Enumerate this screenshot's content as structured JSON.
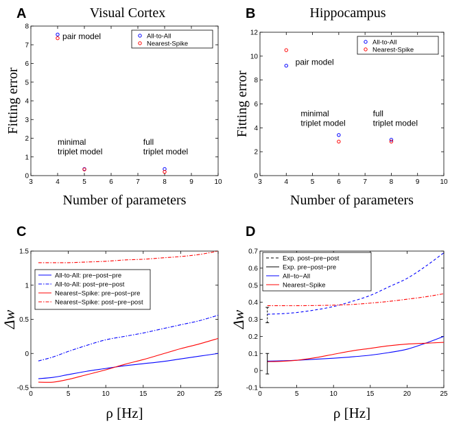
{
  "panels": {
    "A": {
      "letter": "A",
      "title": "Visual Cortex"
    },
    "B": {
      "letter": "B",
      "title": "Hippocampus"
    },
    "C": {
      "letter": "C"
    },
    "D": {
      "letter": "D"
    }
  },
  "chart_data": [
    {
      "id": "A",
      "type": "scatter",
      "title": "Visual Cortex",
      "xlabel": "Number of parameters",
      "ylabel": "Fitting error",
      "xlim": [
        3,
        10
      ],
      "ylim": [
        0,
        8
      ],
      "xticks": [
        3,
        4,
        5,
        6,
        7,
        8,
        9,
        10
      ],
      "yticks": [
        0,
        1,
        2,
        3,
        4,
        5,
        6,
        7,
        8
      ],
      "legend": {
        "position": "top-right"
      },
      "series": [
        {
          "name": "All-to-All",
          "color": "#0000ff",
          "x": [
            4,
            5,
            8
          ],
          "y": [
            7.55,
            0.35,
            0.35
          ]
        },
        {
          "name": "Nearest-Spike",
          "color": "#ff0000",
          "x": [
            4,
            5,
            8
          ],
          "y": [
            7.35,
            0.33,
            0.2
          ]
        }
      ],
      "annotations": [
        {
          "lines": [
            "pair model"
          ],
          "x": 4.18,
          "y": 7.45
        },
        {
          "lines": [
            "minimal",
            "triplet model"
          ],
          "x": 4.0,
          "y": 1.8
        },
        {
          "lines": [
            "full",
            "triplet model"
          ],
          "x": 7.2,
          "y": 1.8
        }
      ]
    },
    {
      "id": "B",
      "type": "scatter",
      "title": "Hippocampus",
      "xlabel": "Number of parameters",
      "ylabel": "Fitting error",
      "xlim": [
        3,
        10
      ],
      "ylim": [
        0,
        12
      ],
      "xticks": [
        3,
        4,
        5,
        6,
        7,
        8,
        9,
        10
      ],
      "yticks": [
        0,
        2,
        4,
        6,
        8,
        10,
        12
      ],
      "legend": {
        "position": "top-right"
      },
      "series": [
        {
          "name": "All-to-All",
          "color": "#0000ff",
          "x": [
            4,
            6,
            8
          ],
          "y": [
            9.2,
            3.4,
            3.0
          ]
        },
        {
          "name": "Nearest-Spike",
          "color": "#ff0000",
          "x": [
            4,
            6,
            8
          ],
          "y": [
            10.5,
            2.85,
            2.85
          ]
        }
      ],
      "annotations": [
        {
          "lines": [
            "pair model"
          ],
          "x": 4.35,
          "y": 9.5
        },
        {
          "lines": [
            "minimal",
            "triplet model"
          ],
          "x": 4.55,
          "y": 5.2
        },
        {
          "lines": [
            "full",
            "triplet model"
          ],
          "x": 7.3,
          "y": 5.2
        }
      ]
    },
    {
      "id": "C",
      "type": "line",
      "xlabel": "ρ [Hz]",
      "ylabel": "Δw",
      "xlim": [
        0,
        25
      ],
      "ylim": [
        -0.5,
        1.5
      ],
      "xticks": [
        0,
        5,
        10,
        15,
        20,
        25
      ],
      "yticks": [
        -0.5,
        0,
        0.5,
        1,
        1.5
      ],
      "legend": {
        "position": "center-left"
      },
      "x": [
        1,
        3,
        5,
        7.5,
        10,
        12.5,
        15,
        17.5,
        20,
        22.5,
        25
      ],
      "series": [
        {
          "name": "All-to-All: pre−post−pre",
          "color": "#0000ff",
          "dash": "solid",
          "values": [
            -0.37,
            -0.35,
            -0.31,
            -0.26,
            -0.22,
            -0.18,
            -0.15,
            -0.12,
            -0.08,
            -0.04,
            0.0
          ]
        },
        {
          "name": "All-to-All: post−pre−post",
          "color": "#0000ff",
          "dash": "dashdot",
          "values": [
            -0.11,
            -0.05,
            0.03,
            0.12,
            0.2,
            0.25,
            0.3,
            0.36,
            0.42,
            0.48,
            0.56
          ]
        },
        {
          "name": "Nearest−Spike: pre−post−pre",
          "color": "#ff0000",
          "dash": "solid",
          "values": [
            -0.42,
            -0.42,
            -0.38,
            -0.31,
            -0.24,
            -0.16,
            -0.09,
            -0.01,
            0.07,
            0.14,
            0.22
          ]
        },
        {
          "name": "Nearest−Spike: post−pre−post",
          "color": "#ff0000",
          "dash": "dashdot",
          "values": [
            1.33,
            1.33,
            1.33,
            1.34,
            1.35,
            1.37,
            1.38,
            1.4,
            1.42,
            1.45,
            1.5
          ]
        }
      ]
    },
    {
      "id": "D",
      "type": "line",
      "xlabel": "ρ [Hz]",
      "ylabel": "Δw",
      "xlim": [
        0,
        25
      ],
      "ylim": [
        -0.1,
        0.7
      ],
      "xticks": [
        0,
        5,
        10,
        15,
        20,
        25
      ],
      "yticks": [
        -0.1,
        0,
        0.1,
        0.2,
        0.3,
        0.4,
        0.5,
        0.6,
        0.7
      ],
      "legend": {
        "position": "top-left"
      },
      "legend_entries": [
        {
          "name": "Exp. post−pre−post",
          "color": "#000000",
          "dash": "dashed"
        },
        {
          "name": "Exp. pre−post−pre",
          "color": "#000000",
          "dash": "solid"
        },
        {
          "name": "All−to−All",
          "color": "#0000ff",
          "dash": "solid"
        },
        {
          "name": "Nearest−Spike",
          "color": "#ff0000",
          "dash": "solid"
        }
      ],
      "x": [
        1,
        3,
        5,
        7.5,
        10,
        12.5,
        15,
        17.5,
        20,
        22.5,
        25
      ],
      "series": [
        {
          "color": "#0000ff",
          "dash": "solid",
          "values": [
            0.055,
            0.057,
            0.06,
            0.066,
            0.072,
            0.08,
            0.09,
            0.105,
            0.125,
            0.16,
            0.2
          ]
        },
        {
          "color": "#0000ff",
          "dash": "dashed",
          "values": [
            0.33,
            0.333,
            0.34,
            0.355,
            0.375,
            0.405,
            0.44,
            0.49,
            0.54,
            0.61,
            0.69
          ]
        },
        {
          "color": "#ff0000",
          "dash": "solid",
          "values": [
            0.052,
            0.054,
            0.06,
            0.075,
            0.095,
            0.115,
            0.13,
            0.145,
            0.155,
            0.16,
            0.165
          ]
        },
        {
          "color": "#ff0000",
          "dash": "dashdot",
          "values": [
            0.38,
            0.38,
            0.38,
            0.381,
            0.383,
            0.387,
            0.395,
            0.405,
            0.418,
            0.432,
            0.45
          ]
        }
      ],
      "error_bars": [
        {
          "style": "dashed",
          "x": 1,
          "low": 0.28,
          "high": 0.37
        },
        {
          "style": "solid",
          "x": 1,
          "low": -0.02,
          "high": 0.1
        }
      ]
    }
  ]
}
